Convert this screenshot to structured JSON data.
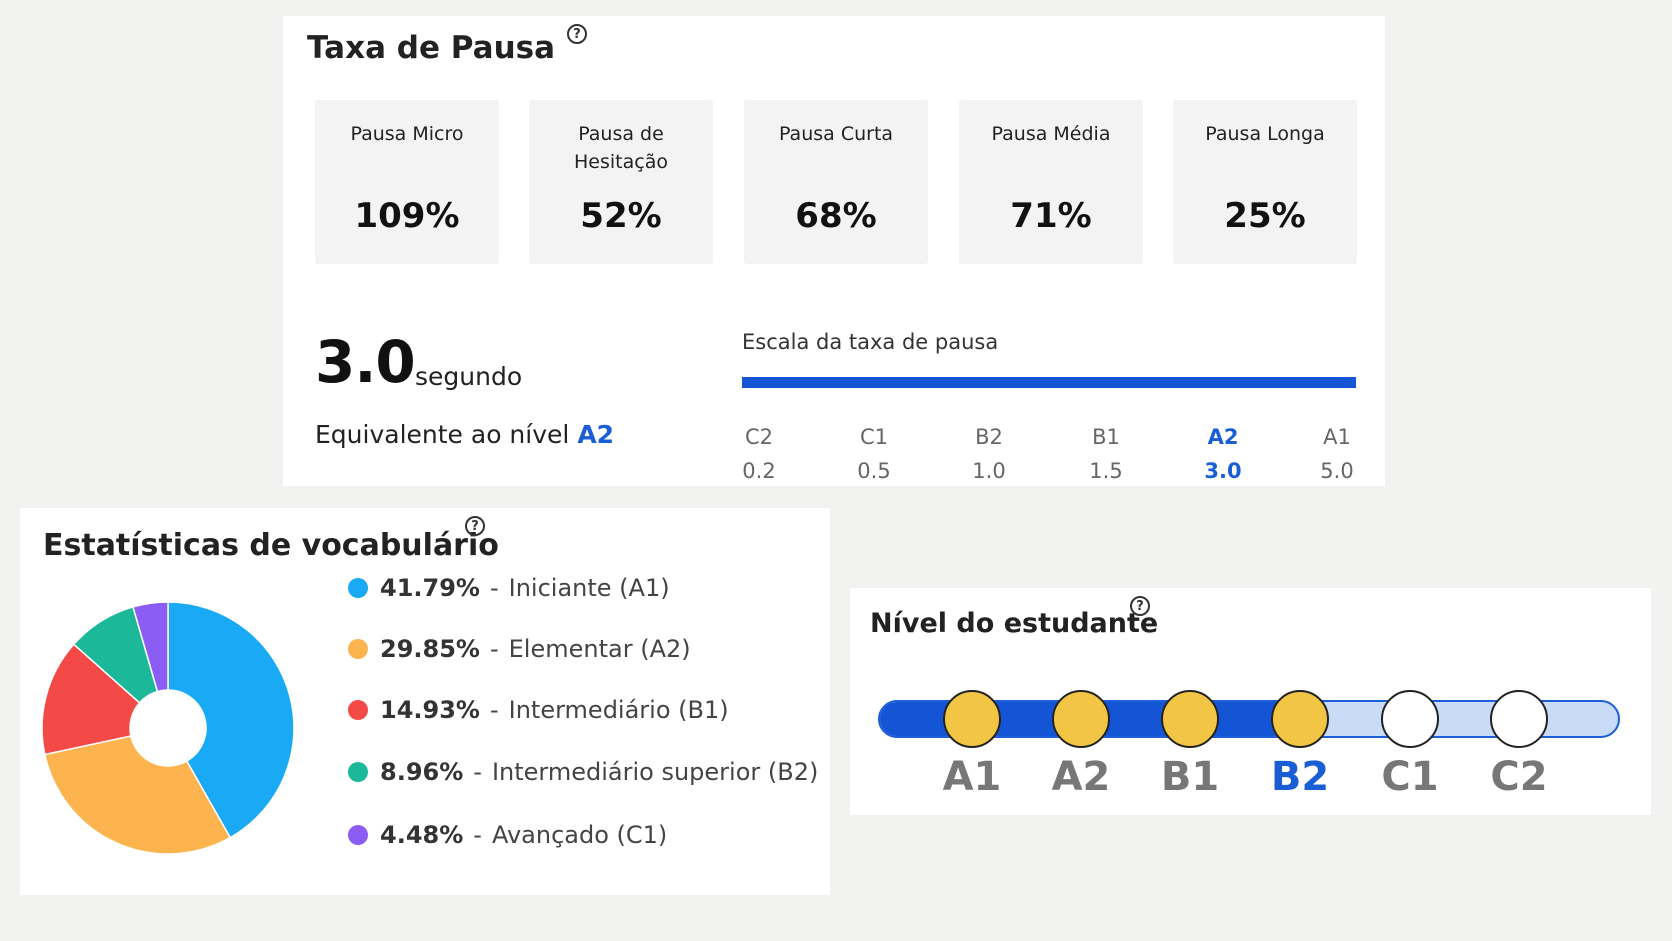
{
  "pause_card": {
    "title": "Taxa de Pausa",
    "help_icon": "question-circle-icon",
    "metrics": [
      {
        "label": "Pausa Micro",
        "value": "109%"
      },
      {
        "label": "Pausa de Hesitação",
        "value": "52%"
      },
      {
        "label": "Pausa Curta",
        "value": "68%"
      },
      {
        "label": "Pausa Média",
        "value": "71%"
      },
      {
        "label": "Pausa Longa",
        "value": "25%"
      }
    ],
    "value": "3.0",
    "unit": "segundo",
    "equivalent_text": "Equivalente ao nível",
    "equivalent_level": "A2",
    "scale_title": "Escala da taxa de pausa",
    "scale": [
      {
        "level": "C2",
        "value": "0.2"
      },
      {
        "level": "C1",
        "value": "0.5"
      },
      {
        "level": "B2",
        "value": "1.0"
      },
      {
        "level": "B1",
        "value": "1.5"
      },
      {
        "level": "A2",
        "value": "3.0",
        "active": true
      },
      {
        "level": "A1",
        "value": "5.0"
      }
    ],
    "accent_color": "#1355d4"
  },
  "vocab_card": {
    "title": "Estatísticas de vocabulário",
    "help_icon": "question-circle-icon",
    "legend": [
      {
        "pct": "41.79%",
        "label": "Iniciante (A1)"
      },
      {
        "pct": "29.85%",
        "label": "Elementar (A2)"
      },
      {
        "pct": "14.93%",
        "label": "Intermediário (B1)"
      },
      {
        "pct": "8.96%",
        "label": "Intermediário superior (B2)"
      },
      {
        "pct": "4.48%",
        "label": "Avançado (C1)"
      }
    ]
  },
  "chart_data": {
    "type": "pie",
    "categories": [
      "Iniciante (A1)",
      "Elementar (A2)",
      "Intermediário (B1)",
      "Intermediário superior (B2)",
      "Avançado (C1)"
    ],
    "values": [
      41.79,
      29.85,
      14.93,
      8.96,
      4.48
    ],
    "colors": [
      "#1aa9f5",
      "#fdb44e",
      "#f44a47",
      "#1bb99a",
      "#8c5df5"
    ],
    "donut": true,
    "legend_position": "right"
  },
  "level_card": {
    "title": "Nível do estudante",
    "help_icon": "question-circle-icon",
    "levels": [
      "A1",
      "A2",
      "B1",
      "B2",
      "C1",
      "C2"
    ],
    "current_level": "B2",
    "achieved_count": 4,
    "node_fill_color": "#f2c644",
    "track_color": "#1355d4"
  }
}
